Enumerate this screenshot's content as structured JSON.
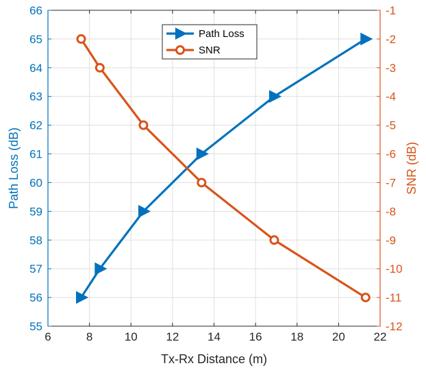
{
  "chart_data": {
    "type": "line",
    "xlabel": "Tx-Rx Distance (m)",
    "ylabel_left": "Path Loss (dB)",
    "ylabel_right": "SNR (dB)",
    "xlim": [
      6,
      22
    ],
    "ylim_left": [
      55,
      66
    ],
    "ylim_right": [
      -12,
      -1
    ],
    "grid": true,
    "legend_position": "top-center",
    "x_ticks": [
      "6",
      "8",
      "10",
      "12",
      "14",
      "16",
      "18",
      "20",
      "22"
    ],
    "y_left_ticks": [
      "55",
      "56",
      "57",
      "58",
      "59",
      "60",
      "61",
      "62",
      "63",
      "64",
      "65",
      "66"
    ],
    "y_right_ticks": [
      "-12",
      "-11",
      "-10",
      "-9",
      "-8",
      "-7",
      "-6",
      "-5",
      "-4",
      "-3",
      "-2",
      "-1"
    ],
    "series": [
      {
        "name": "Path Loss",
        "axis": "left",
        "color": "#0072BD",
        "marker": "triangle-right",
        "x": [
          7.6,
          8.5,
          10.6,
          13.4,
          16.9,
          21.3
        ],
        "y": [
          56,
          57,
          59,
          61,
          63,
          65
        ]
      },
      {
        "name": "SNR",
        "axis": "right",
        "color": "#D95319",
        "marker": "circle",
        "x": [
          7.6,
          8.5,
          10.6,
          13.4,
          16.9,
          21.3
        ],
        "y": [
          -2,
          -3,
          -5,
          -7,
          -9,
          -11
        ]
      }
    ]
  }
}
